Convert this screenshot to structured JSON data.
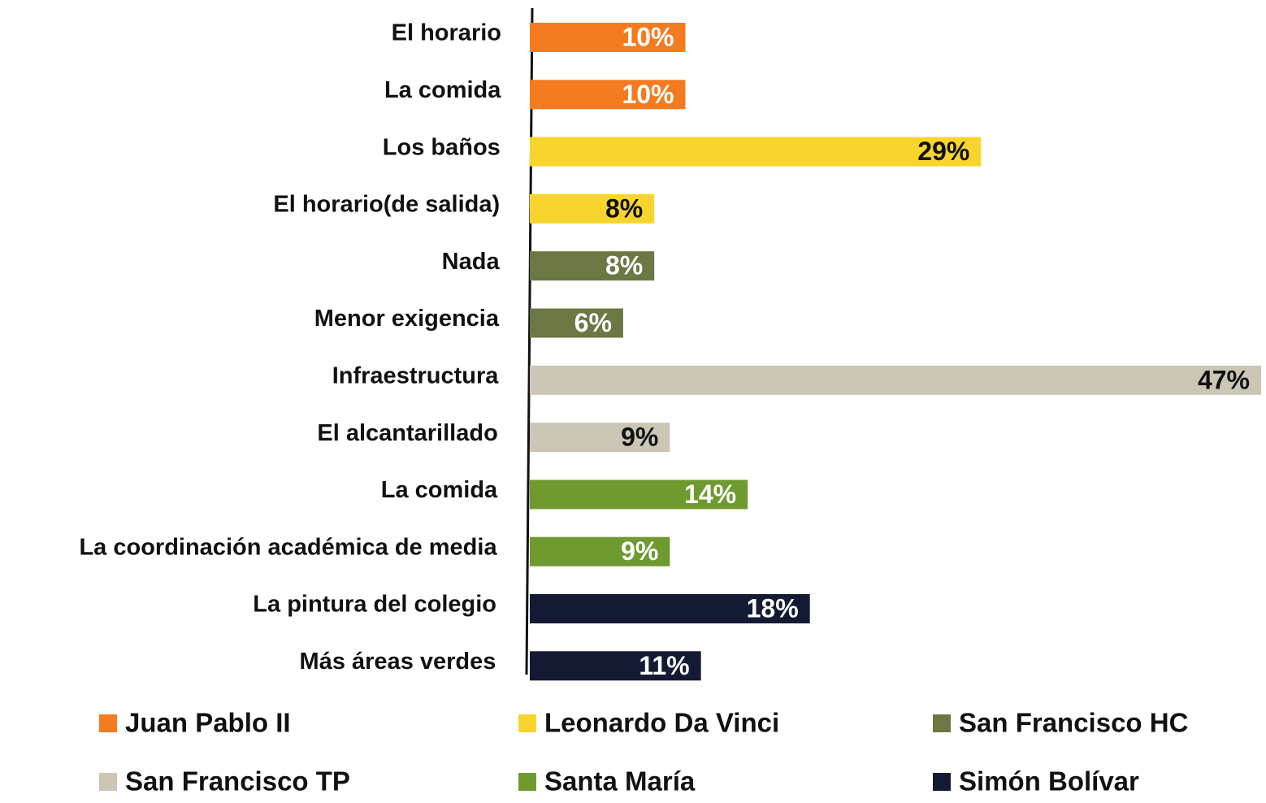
{
  "chart_data": {
    "type": "bar",
    "orientation": "horizontal",
    "categories": [
      "El horario",
      "La comida",
      "Los baños",
      "El horario(de salida)",
      "Nada",
      "Menor exigencia",
      "Infraestructura",
      "El alcantarillado",
      "La comida",
      "La coordinación académica de media",
      "La pintura del colegio",
      "Más áreas verdes"
    ],
    "series": [
      {
        "name": "Juan Pablo II",
        "color": "#f47b20",
        "values": [
          10,
          10,
          null,
          null,
          null,
          null,
          null,
          null,
          null,
          null,
          null,
          null
        ],
        "value_labels": [
          "10%",
          "10%",
          null,
          null,
          null,
          null,
          null,
          null,
          null,
          null,
          null,
          null
        ]
      },
      {
        "name": "Leonardo Da Vinci",
        "color": "#f8d52c",
        "values": [
          null,
          null,
          29,
          8,
          null,
          null,
          null,
          null,
          null,
          null,
          null,
          null
        ],
        "value_labels": [
          null,
          null,
          "29%",
          "8%",
          null,
          null,
          null,
          null,
          null,
          null,
          null,
          null
        ]
      },
      {
        "name": "San Francisco  HC",
        "color": "#6b7843",
        "values": [
          null,
          null,
          null,
          null,
          8,
          6,
          null,
          null,
          null,
          null,
          null,
          null
        ],
        "value_labels": [
          null,
          null,
          null,
          null,
          "8%",
          "6%",
          null,
          null,
          null,
          null,
          null,
          null
        ]
      },
      {
        "name": "San Francisco  TP",
        "color": "#cbc6b6",
        "values": [
          null,
          null,
          null,
          null,
          null,
          null,
          47,
          9,
          null,
          null,
          null,
          null
        ],
        "value_labels": [
          null,
          null,
          null,
          null,
          null,
          null,
          "47%",
          "9%",
          null,
          null,
          null,
          null
        ]
      },
      {
        "name": "Santa María",
        "color": "#6f9a2f",
        "values": [
          null,
          null,
          null,
          null,
          null,
          null,
          null,
          null,
          14,
          9,
          null,
          null
        ],
        "value_labels": [
          null,
          null,
          null,
          null,
          null,
          null,
          null,
          null,
          "14%",
          "9%",
          null,
          null
        ]
      },
      {
        "name": "Simón Bolívar",
        "color": "#141a33",
        "values": [
          null,
          null,
          null,
          null,
          null,
          null,
          null,
          null,
          null,
          null,
          18,
          11
        ],
        "value_labels": [
          null,
          null,
          null,
          null,
          null,
          null,
          null,
          null,
          null,
          null,
          "18%",
          "11%"
        ]
      }
    ],
    "legend": "bottom"
  }
}
